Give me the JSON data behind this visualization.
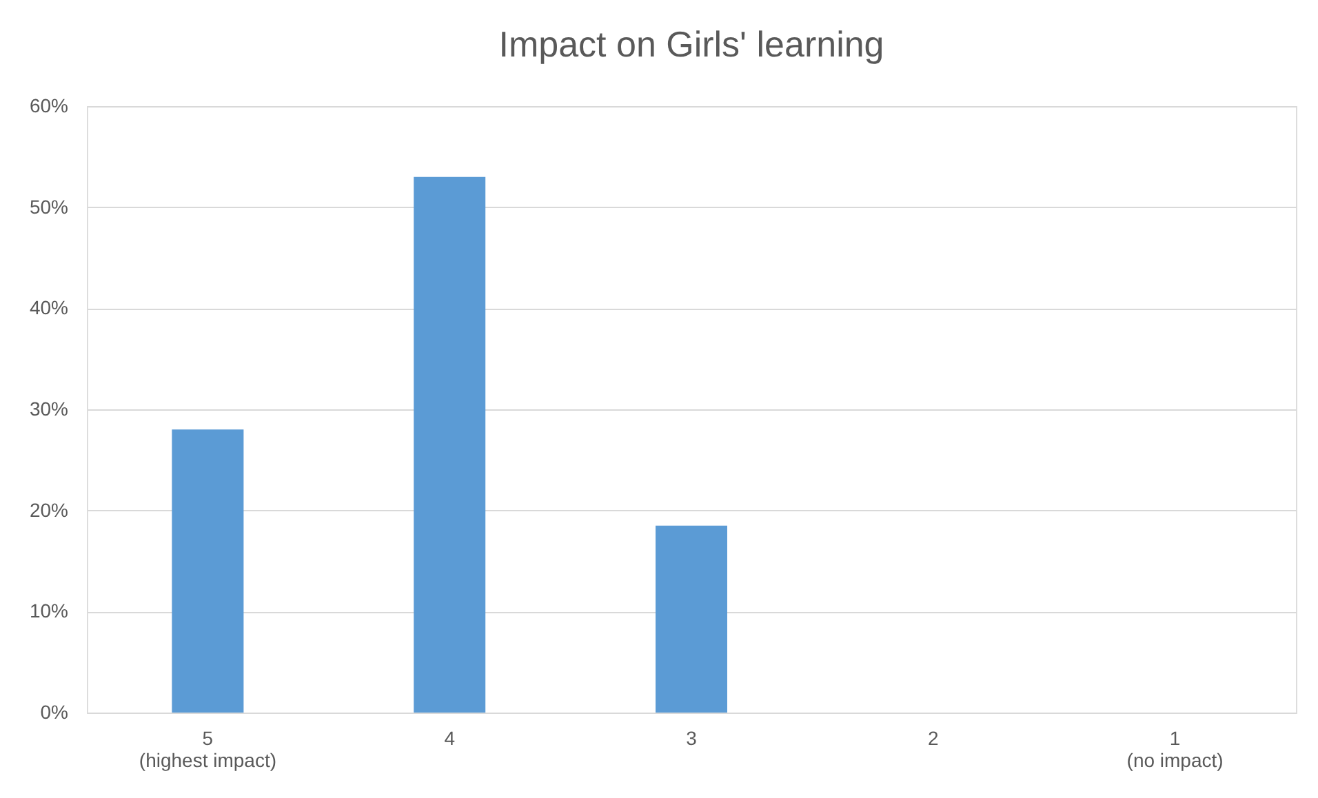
{
  "chart_data": {
    "type": "bar",
    "title": "Impact on Girls' learning",
    "categories": [
      "5\n(highest impact)",
      "4",
      "3",
      "2",
      "1\n(no impact)"
    ],
    "values": [
      28,
      53,
      18.5,
      0,
      0
    ],
    "color": "#5b9bd5",
    "ylim": [
      0,
      60
    ],
    "yticks": [
      {
        "value": 0,
        "label": "0%"
      },
      {
        "value": 10,
        "label": "10%"
      },
      {
        "value": 20,
        "label": "20%"
      },
      {
        "value": 30,
        "label": "30%"
      },
      {
        "value": 40,
        "label": "40%"
      },
      {
        "value": 50,
        "label": "50%"
      },
      {
        "value": 60,
        "label": "60%"
      }
    ],
    "grid": "y"
  }
}
